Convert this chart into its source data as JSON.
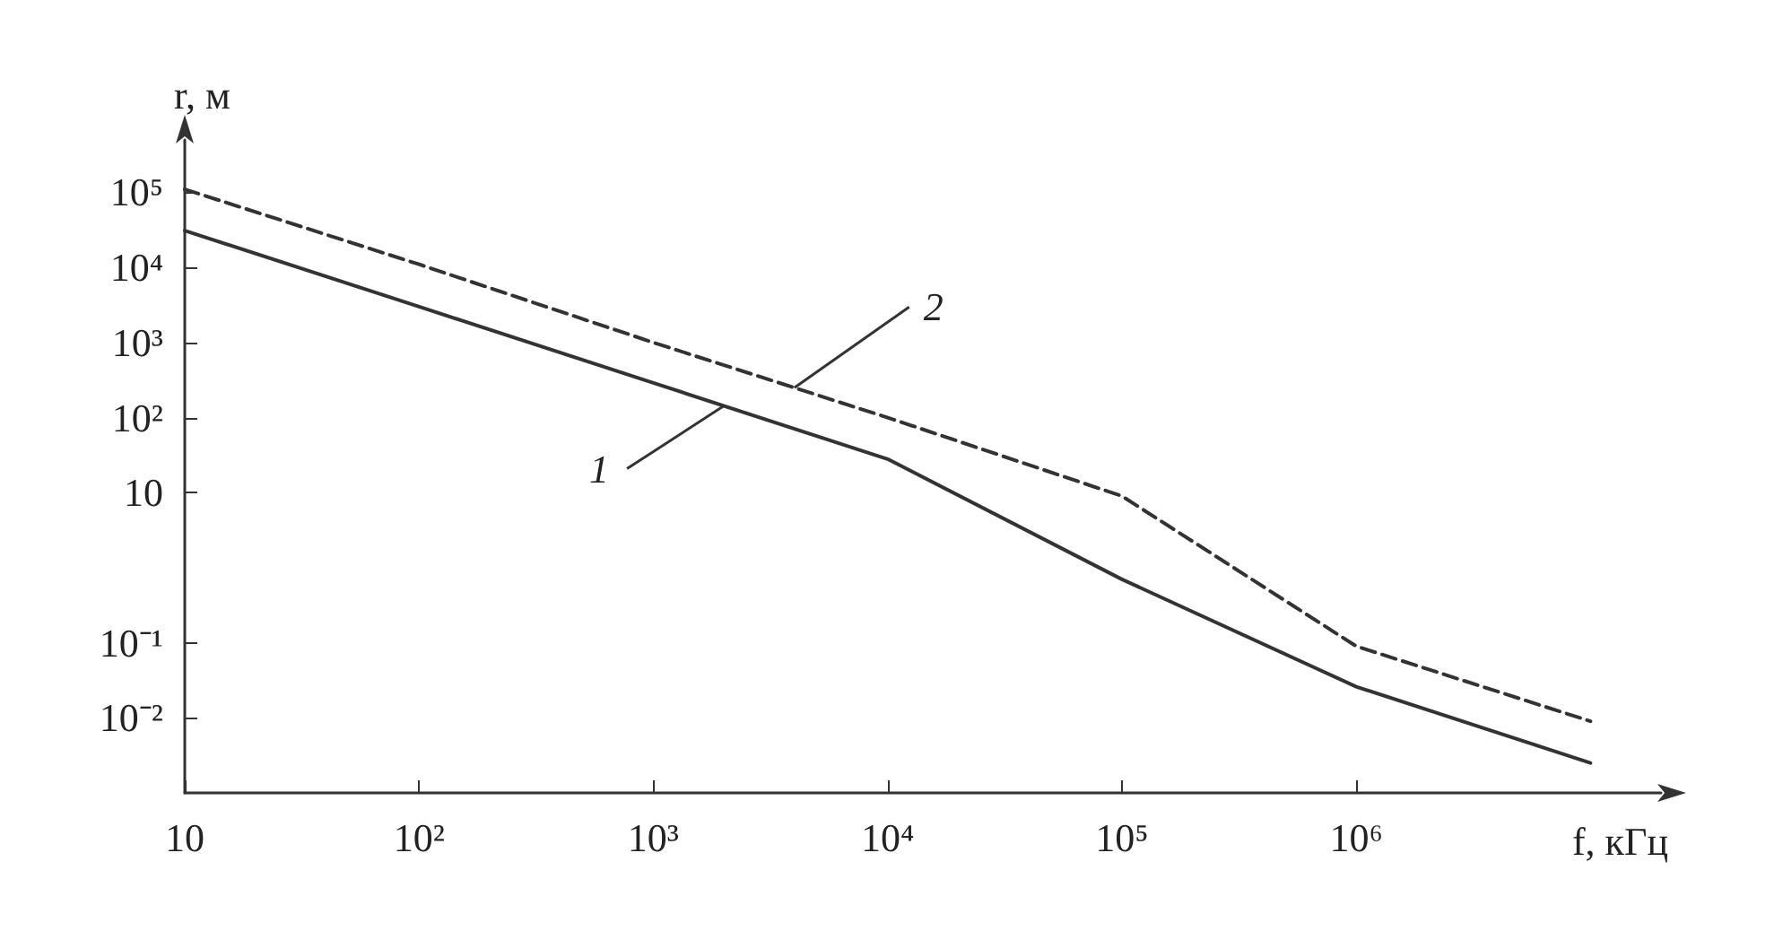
{
  "chart_data": {
    "type": "line",
    "xlabel": "f, кГц",
    "ylabel": "r, м",
    "log": "xy",
    "grid": false,
    "marker": "none",
    "x": [
      10,
      100,
      1000,
      10000,
      100000,
      1000000,
      10000000
    ],
    "xlim": [
      10,
      20000000
    ],
    "xticks": [
      10,
      {
        "value": 100,
        "label": "10²"
      },
      {
        "value": 1000,
        "label": "10³"
      },
      {
        "value": 10000,
        "label": "10⁴"
      },
      {
        "value": 100000,
        "label": "10⁵"
      },
      {
        "value": 1000000,
        "label": "10⁶"
      }
    ],
    "ylim": [
      0.001,
      500000
    ],
    "yticks": [
      {
        "value": 100000,
        "label": "10⁵"
      },
      {
        "value": 10000,
        "label": "10⁴"
      },
      {
        "value": 1000,
        "label": "10³"
      },
      {
        "value": 100,
        "label": "10²"
      },
      10,
      {
        "value": 0.1,
        "label": "10⁻¹"
      },
      {
        "value": 0.01,
        "label": "10⁻²"
      }
    ],
    "series": [
      {
        "color": "#333333",
        "line_style": "solid",
        "values": [
          31000,
          3000,
          290,
          28,
          0.7,
          0.026,
          0.0025
        ]
      },
      {
        "color": "#333333",
        "line_style": "dashed",
        "values": [
          110000,
          11000,
          1000,
          100,
          9,
          0.09,
          0.009
        ]
      }
    ],
    "annotations": [
      {
        "text": "1",
        "x": 2000,
        "y": 143
      },
      {
        "text": "2",
        "x": 4000,
        "y": 250
      }
    ]
  }
}
